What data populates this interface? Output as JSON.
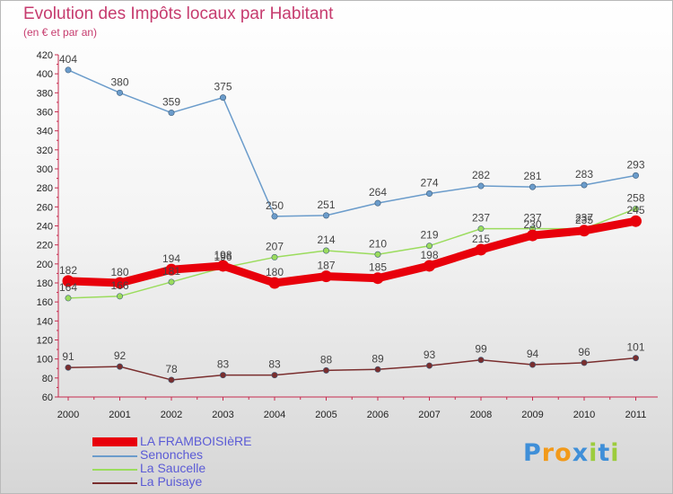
{
  "chart_data": {
    "type": "line",
    "title": "Evolution des Impôts locaux par Habitant",
    "subtitle": "(en € et par an)",
    "x": [
      "2000",
      "2001",
      "2002",
      "2003",
      "2004",
      "2005",
      "2006",
      "2007",
      "2008",
      "2009",
      "2010",
      "2011"
    ],
    "ylim": [
      60,
      420
    ],
    "yticks": [
      60,
      80,
      100,
      120,
      140,
      160,
      180,
      200,
      220,
      240,
      260,
      280,
      300,
      320,
      340,
      360,
      380,
      400,
      420
    ],
    "grid": false,
    "legend_position": "bottom-left",
    "series": [
      {
        "name": "LA FRAMBOISIèRE",
        "color": "#e8000b",
        "label_color": "#444444",
        "emphasis": true,
        "values": [
          182,
          180,
          194,
          198,
          180,
          187,
          185,
          198,
          215,
          230,
          235,
          245
        ]
      },
      {
        "name": "Senonches",
        "color": "#6b9ccb",
        "label_color": "#444444",
        "values": [
          404,
          380,
          359,
          375,
          250,
          251,
          264,
          274,
          282,
          281,
          283,
          293
        ]
      },
      {
        "name": "La Saucelle",
        "color": "#9bdc5d",
        "label_color": "#444444",
        "values": [
          164,
          166,
          181,
          196,
          207,
          214,
          210,
          219,
          237,
          237,
          237,
          258
        ]
      },
      {
        "name": "La Puisaye",
        "color": "#7a2e2e",
        "label_color": "#444444",
        "values": [
          91,
          92,
          78,
          83,
          83,
          88,
          89,
          93,
          99,
          94,
          96,
          101
        ]
      }
    ],
    "data_labels": [
      {
        "series": "LA FRAMBOISIèRE",
        "labels": [
          "182",
          "180",
          "194",
          "198",
          "180",
          "187",
          "185",
          "198",
          "215",
          "230",
          "235",
          "245"
        ]
      },
      {
        "series": "Senonches",
        "labels": [
          "404",
          "380",
          "359",
          "375",
          "250",
          "251",
          "264",
          "274",
          "282",
          "281",
          "283",
          "293"
        ]
      },
      {
        "series": "La Saucelle",
        "labels": [
          "164",
          "166",
          "181",
          "196",
          "207",
          "214",
          "210",
          "219",
          "237",
          "237",
          "237",
          "258"
        ]
      },
      {
        "series": "La Puisaye",
        "labels": [
          "91",
          "92",
          "78",
          "83",
          "83",
          "88",
          "89",
          "93",
          "99",
          "94",
          "96",
          "101"
        ]
      }
    ]
  },
  "legend": {
    "items": [
      {
        "label": "LA FRAMBOISIèRE",
        "color": "#e8000b",
        "text_color": "#5b5bd6"
      },
      {
        "label": "Senonches",
        "color": "#6b9ccb",
        "text_color": "#5b5bd6"
      },
      {
        "label": "La Saucelle",
        "color": "#9bdc5d",
        "text_color": "#5b5bd6"
      },
      {
        "label": "La Puisaye",
        "color": "#7a2e2e",
        "text_color": "#5b5bd6"
      }
    ]
  },
  "logo": {
    "text": "Proxiti",
    "letter_colors": [
      "#3f8fd8",
      "#f29a1a",
      "#f29a1a",
      "#3f8fd8",
      "#9ccc3c",
      "#3f8fd8",
      "#9ccc3c"
    ]
  }
}
